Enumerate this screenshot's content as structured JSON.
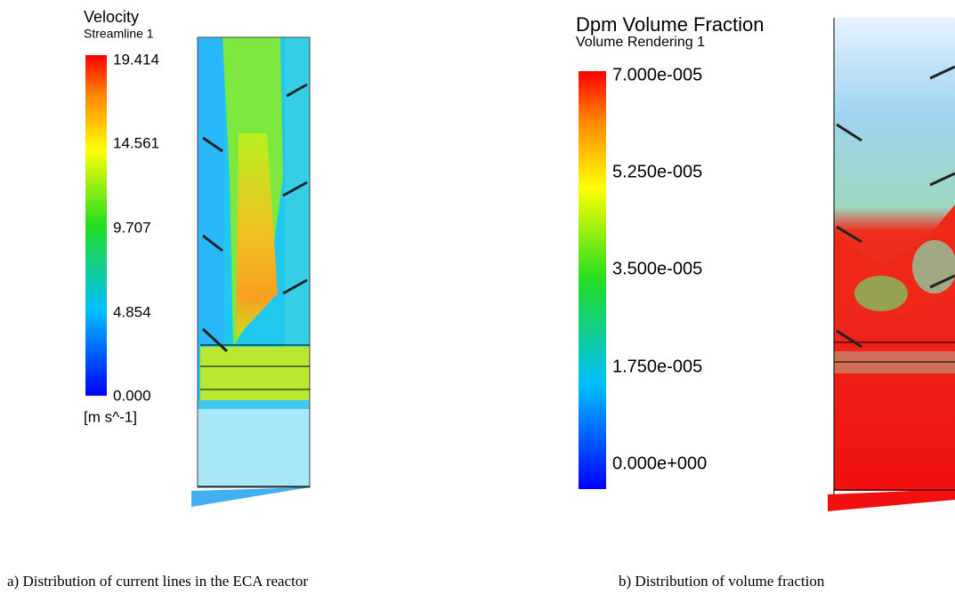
{
  "panels": [
    {
      "legend": {
        "title": "Velocity",
        "subtitle": "Streamline 1",
        "ticks": [
          "19.414",
          "14.561",
          "9.707",
          "4.854",
          "0.000"
        ],
        "unit": "[m s^-1]"
      },
      "caption": "a) Distribution of current lines in the ECA reactor"
    },
    {
      "legend": {
        "title": "Dpm Volume Fraction",
        "subtitle": "Volume Rendering 1",
        "ticks": [
          "7.000e-005",
          "5.250e-005",
          "3.500e-005",
          "1.750e-005",
          "0.000e+000"
        ]
      },
      "caption": "b) Distribution of volume fraction"
    }
  ]
}
